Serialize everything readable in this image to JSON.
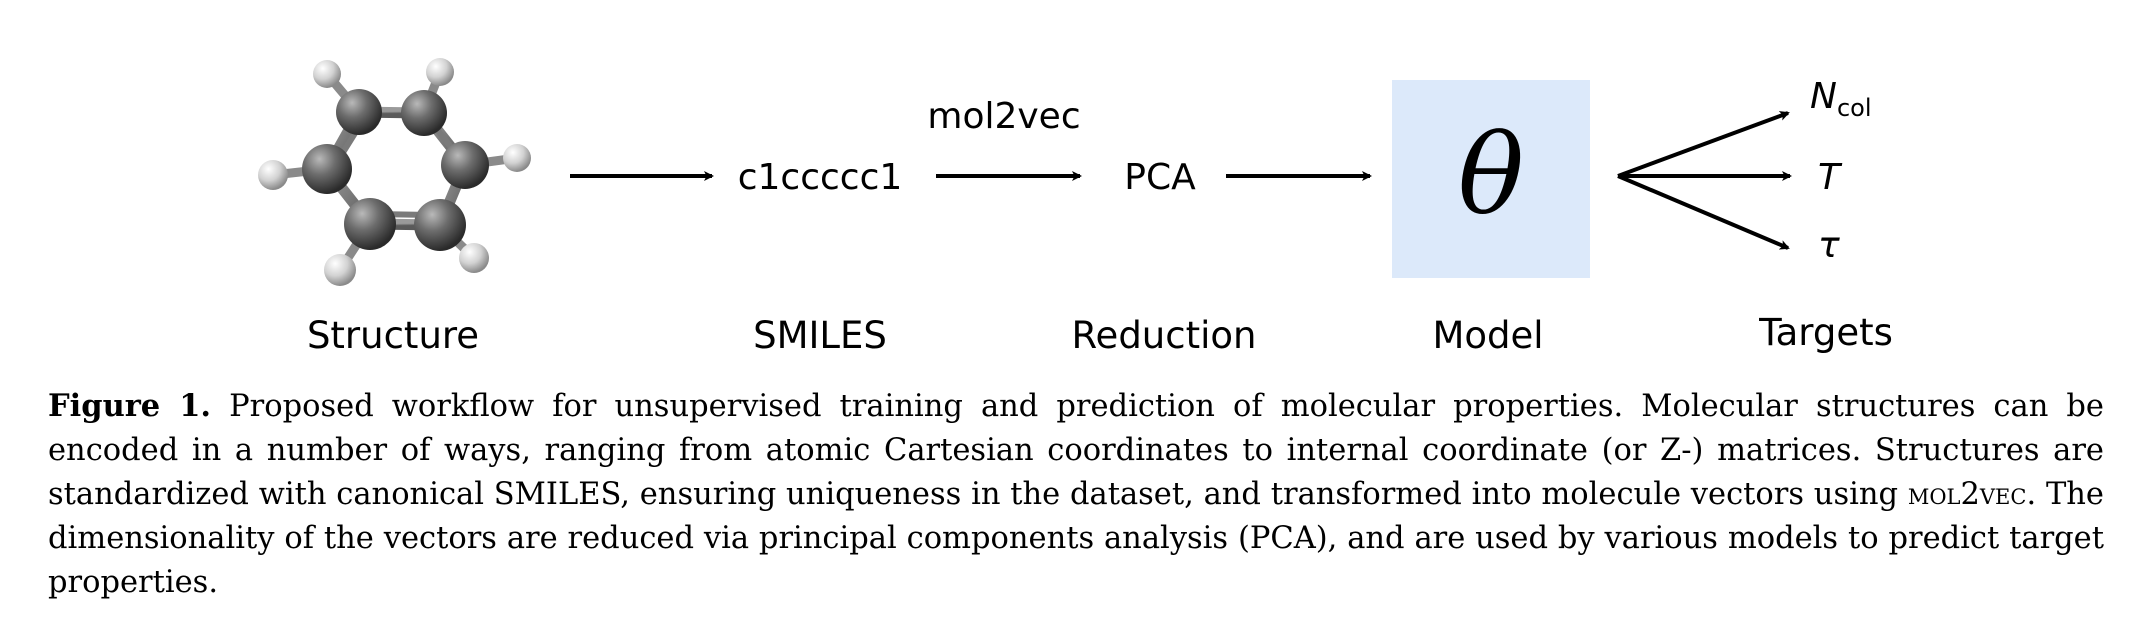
{
  "diagram": {
    "stages": {
      "structure": "Structure",
      "smiles": "SMILES",
      "reduction": "Reduction",
      "model": "Model",
      "targets": "Targets"
    },
    "smiles_string": "c1ccccc1",
    "arrow_label": "mol2vec",
    "reduction_text": "PCA",
    "model_symbol": "θ",
    "model_box_color": "#dce9fa",
    "targets": {
      "ncol_main": "N",
      "ncol_sub": "col",
      "temperature": "T",
      "tau": "τ"
    }
  },
  "caption": {
    "label": "Figure 1.",
    "text_part1": "Proposed workflow for unsupervised training and prediction of molecular properties. Molecular structures can be encoded in a number of ways, ranging from atomic Cartesian coordinates to internal coordinate (or Z-) matrices. Structures are standardized with canonical SMILES, ensuring uniqueness in the dataset, and transformed into molecule vectors using",
    "smallcaps_term": "mol2vec",
    "text_part2": ". The dimensionality of the vectors are reduced via principal components analysis (PCA), and are used by various models to predict target properties."
  }
}
